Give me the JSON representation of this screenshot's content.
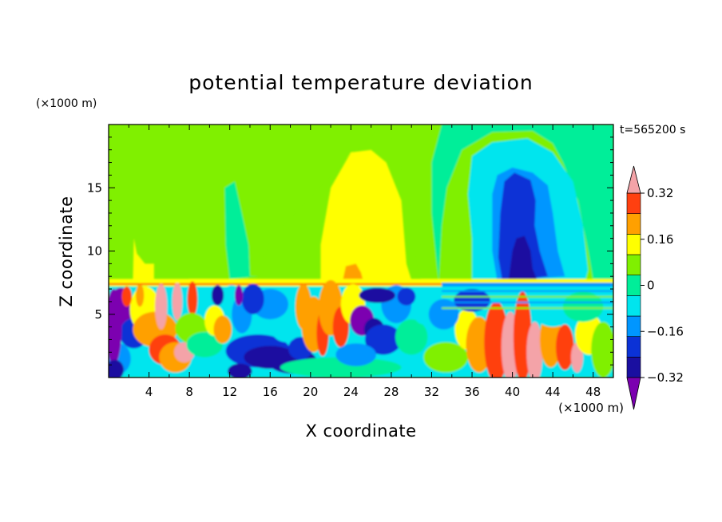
{
  "chart_data": {
    "type": "heatmap",
    "title": "potential temperature deviation",
    "xlabel": "X coordinate",
    "ylabel": "Z coordinate",
    "x_unit": "(×1000 m)",
    "y_unit": "(×1000 m)",
    "time_label": "t=565200 s",
    "xlim": [
      0,
      50
    ],
    "ylim": [
      0,
      20
    ],
    "x_ticks": [
      4,
      8,
      12,
      16,
      20,
      24,
      28,
      32,
      36,
      40,
      44,
      48
    ],
    "y_ticks": [
      5,
      10,
      15
    ],
    "colorbar": {
      "levels": [
        -0.4,
        -0.32,
        -0.24,
        -0.16,
        -0.08,
        0,
        0.08,
        0.16,
        0.24,
        0.32,
        0.4
      ],
      "tick_labels": [
        "0.32",
        "0.16",
        "0",
        "−0.16",
        "−0.32"
      ],
      "tick_values": [
        0.32,
        0.16,
        0,
        -0.16,
        -0.32
      ],
      "colors": [
        "#7b00b0",
        "#1a0fa0",
        "#0b32d6",
        "#0096ff",
        "#00e5ee",
        "#00ee99",
        "#80f000",
        "#ffff00",
        "#ffa000",
        "#ff4010",
        "#f4a3a8"
      ],
      "under_color": "#7b00b0",
      "over_color": "#f4a3a8"
    }
  }
}
